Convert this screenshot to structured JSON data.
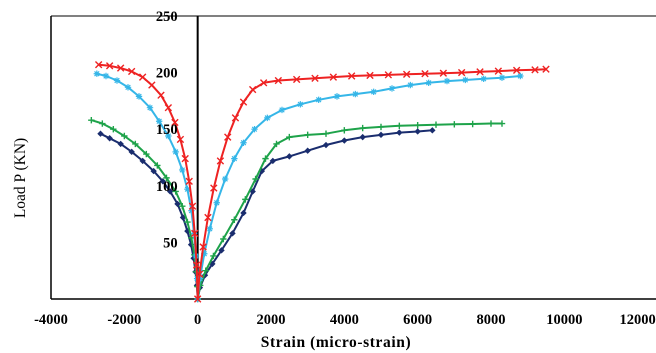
{
  "chart_data": {
    "type": "line",
    "xlabel": "Strain (micro-strain)",
    "ylabel": "Load P (KN)",
    "xlim": [
      -4000,
      12500
    ],
    "ylim": [
      0,
      250
    ],
    "x_ticks": [
      "-4000",
      "-2000",
      "0",
      "2000",
      "4000",
      "6000",
      "8000",
      "10000",
      "12000"
    ],
    "y_ticks": [
      "50",
      "100",
      "150",
      "200",
      "250"
    ],
    "grid": false,
    "legend": "none",
    "series": [
      {
        "color": "#1a2d6e",
        "marker": "diamond",
        "points": [
          [
            -2650,
            146
          ],
          [
            -2400,
            142
          ],
          [
            -2100,
            137
          ],
          [
            -1800,
            130
          ],
          [
            -1500,
            122
          ],
          [
            -1200,
            113
          ],
          [
            -950,
            104
          ],
          [
            -750,
            95
          ],
          [
            -550,
            84
          ],
          [
            -400,
            72
          ],
          [
            -280,
            60
          ],
          [
            -180,
            48
          ],
          [
            -110,
            36
          ],
          [
            -60,
            24
          ],
          [
            -20,
            12
          ],
          [
            0,
            0
          ],
          [
            60,
            10
          ],
          [
            200,
            21
          ],
          [
            400,
            31
          ],
          [
            650,
            43
          ],
          [
            950,
            58
          ],
          [
            1250,
            76
          ],
          [
            1500,
            95
          ],
          [
            1750,
            113
          ],
          [
            2050,
            122
          ],
          [
            2500,
            126
          ],
          [
            3000,
            131
          ],
          [
            3500,
            136
          ],
          [
            4000,
            140
          ],
          [
            4500,
            143
          ],
          [
            5000,
            145
          ],
          [
            5500,
            147
          ],
          [
            6000,
            148
          ],
          [
            6400,
            149
          ]
        ]
      },
      {
        "color": "#1ea34a",
        "marker": "plus",
        "points": [
          [
            -2900,
            158
          ],
          [
            -2600,
            155
          ],
          [
            -2300,
            150
          ],
          [
            -2000,
            144
          ],
          [
            -1700,
            137
          ],
          [
            -1400,
            128
          ],
          [
            -1100,
            118
          ],
          [
            -850,
            107
          ],
          [
            -600,
            95
          ],
          [
            -420,
            82
          ],
          [
            -280,
            68
          ],
          [
            -170,
            54
          ],
          [
            -90,
            39
          ],
          [
            -40,
            24
          ],
          [
            -10,
            11
          ],
          [
            0,
            0
          ],
          [
            70,
            12
          ],
          [
            220,
            25
          ],
          [
            430,
            38
          ],
          [
            700,
            53
          ],
          [
            1000,
            70
          ],
          [
            1300,
            88
          ],
          [
            1580,
            106
          ],
          [
            1850,
            124
          ],
          [
            2150,
            137
          ],
          [
            2500,
            143
          ],
          [
            3000,
            145
          ],
          [
            3500,
            146
          ],
          [
            4000,
            149
          ],
          [
            4500,
            151
          ],
          [
            5000,
            152
          ],
          [
            5500,
            153
          ],
          [
            6000,
            153.5
          ],
          [
            6500,
            154
          ],
          [
            7000,
            154.3
          ],
          [
            7500,
            154.6
          ],
          [
            8000,
            155
          ],
          [
            8300,
            155
          ]
        ]
      },
      {
        "color": "#35b6e8",
        "marker": "star",
        "points": [
          [
            -2750,
            199
          ],
          [
            -2500,
            197
          ],
          [
            -2200,
            193
          ],
          [
            -1900,
            187
          ],
          [
            -1600,
            179
          ],
          [
            -1300,
            169
          ],
          [
            -1050,
            157
          ],
          [
            -800,
            144
          ],
          [
            -600,
            130
          ],
          [
            -420,
            114
          ],
          [
            -280,
            97
          ],
          [
            -170,
            78
          ],
          [
            -100,
            58
          ],
          [
            -50,
            38
          ],
          [
            -15,
            18
          ],
          [
            0,
            0
          ],
          [
            60,
            18
          ],
          [
            180,
            40
          ],
          [
            330,
            62
          ],
          [
            520,
            85
          ],
          [
            750,
            106
          ],
          [
            1000,
            124
          ],
          [
            1250,
            138
          ],
          [
            1550,
            150
          ],
          [
            1900,
            160
          ],
          [
            2300,
            167
          ],
          [
            2800,
            172
          ],
          [
            3300,
            176
          ],
          [
            3800,
            179
          ],
          [
            4300,
            181
          ],
          [
            4800,
            183
          ],
          [
            5300,
            186
          ],
          [
            5800,
            189
          ],
          [
            6300,
            191
          ],
          [
            6800,
            192.5
          ],
          [
            7300,
            193.5
          ],
          [
            7800,
            194.5
          ],
          [
            8300,
            195.5
          ],
          [
            8800,
            197
          ]
        ]
      },
      {
        "color": "#ee2222",
        "marker": "x",
        "points": [
          [
            -2700,
            207
          ],
          [
            -2400,
            206
          ],
          [
            -2100,
            204
          ],
          [
            -1800,
            201
          ],
          [
            -1500,
            196
          ],
          [
            -1250,
            189
          ],
          [
            -1000,
            180
          ],
          [
            -800,
            169
          ],
          [
            -620,
            156
          ],
          [
            -470,
            141
          ],
          [
            -340,
            124
          ],
          [
            -230,
            104
          ],
          [
            -140,
            82
          ],
          [
            -80,
            58
          ],
          [
            -30,
            30
          ],
          [
            0,
            0
          ],
          [
            50,
            22
          ],
          [
            150,
            46
          ],
          [
            280,
            72
          ],
          [
            440,
            98
          ],
          [
            620,
            122
          ],
          [
            820,
            143
          ],
          [
            1030,
            160
          ],
          [
            1250,
            174
          ],
          [
            1500,
            185
          ],
          [
            1800,
            191
          ],
          [
            2200,
            193
          ],
          [
            2700,
            194
          ],
          [
            3200,
            195
          ],
          [
            3700,
            196
          ],
          [
            4200,
            197
          ],
          [
            4700,
            197.5
          ],
          [
            5200,
            198
          ],
          [
            5700,
            198.5
          ],
          [
            6200,
            199
          ],
          [
            6700,
            199.5
          ],
          [
            7200,
            200
          ],
          [
            7700,
            200.7
          ],
          [
            8200,
            201.3
          ],
          [
            8700,
            202
          ],
          [
            9200,
            202.5
          ],
          [
            9500,
            203
          ]
        ]
      }
    ]
  }
}
